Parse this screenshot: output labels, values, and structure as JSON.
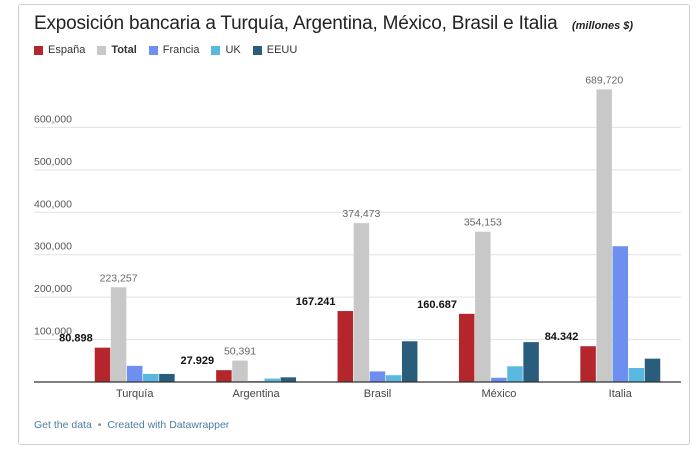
{
  "title": "Exposición bancaria a Turquía, Argentina, México, Brasil e Italia",
  "subtitle": "(millones $)",
  "footer": {
    "get_data": "Get the data",
    "separator": "•",
    "created": "Created with Datawrapper"
  },
  "chart_data": {
    "type": "bar",
    "title": "Exposición bancaria a Turquía, Argentina, México, Brasil e Italia",
    "subtitle": "(millones $)",
    "xlabel": "",
    "ylabel": "",
    "ylim": [
      0,
      700000
    ],
    "yticks": [
      100000,
      200000,
      300000,
      400000,
      500000,
      600000
    ],
    "ytick_labels": [
      "100,000",
      "200,000",
      "300,000",
      "400,000",
      "500,000",
      "600,000"
    ],
    "grid": true,
    "legend_position": "top-left",
    "categories": [
      "Turquía",
      "Argentina",
      "Brasil",
      "México",
      "Italia"
    ],
    "series": [
      {
        "name": "España",
        "color": "#b5252c",
        "values": [
          80898,
          27929,
          167241,
          160687,
          84342
        ],
        "labels": [
          "80.898",
          "27.929",
          "167.241",
          "160.687",
          "84.342"
        ],
        "label_bold": true
      },
      {
        "name": "Total",
        "color": "#c8c8c8",
        "values": [
          223257,
          50391,
          374473,
          354153,
          689720
        ],
        "labels": [
          "223,257",
          "50,391",
          "374,473",
          "354,153",
          "689,720"
        ],
        "label_bold": false,
        "legend_bold": true
      },
      {
        "name": "Francia",
        "color": "#6e8ff0",
        "values": [
          38000,
          2000,
          25000,
          10000,
          320000
        ],
        "labels": null
      },
      {
        "name": "UK",
        "color": "#59b8df",
        "values": [
          19000,
          8000,
          16000,
          37000,
          33000
        ],
        "labels": null
      },
      {
        "name": "EEUU",
        "color": "#2a5d7c",
        "values": [
          19000,
          11000,
          96000,
          94000,
          55000
        ],
        "labels": null
      }
    ]
  }
}
